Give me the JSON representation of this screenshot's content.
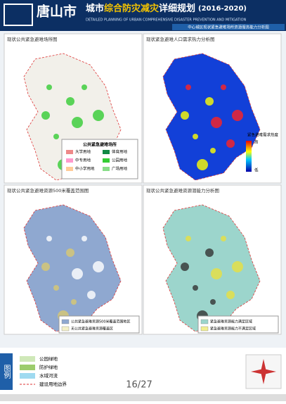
{
  "header": {
    "city": "唐山市",
    "title_prefix": "城市",
    "title_highlight": "综合防灾减灾",
    "title_suffix": "详细规划",
    "years": "(2016-2020)",
    "subtitle_en": "DETAILED PLANNING OF URBAN COMPREHENSIVE DISASTER PREVENTION AND MITIGATION",
    "banner": "中心城区现状紧急避难场所资源服务能力分析图"
  },
  "panels": [
    {
      "title": "现状公共紧急避难场所图",
      "legend_title": "公共紧急避难场所",
      "legend": [
        "大学用地",
        "体育用地",
        "中专用地",
        "公园用地",
        "中小学用地",
        "广场用地"
      ]
    },
    {
      "title": "现状紧急避难人口需求热力分析图",
      "legend_title": "紧急避难需求热度",
      "legend": [
        "高",
        "低"
      ]
    },
    {
      "title": "现状公共紧急避难资源500米覆盖范围图",
      "legend": [
        "公共紧急避难资源500米覆盖范围地区",
        "无公共紧急避难资源覆盖区"
      ]
    },
    {
      "title": "现状公共紧急避难资源潜能力分析图",
      "legend": [
        "紧急避难资源能力满足区域",
        "紧急避难资源能力不满足区域"
      ]
    }
  ],
  "legend": {
    "label": "图例",
    "items": [
      "公园绿地",
      "防护绿地",
      "水域河流",
      "建设用地边界"
    ]
  },
  "page": "16/27"
}
